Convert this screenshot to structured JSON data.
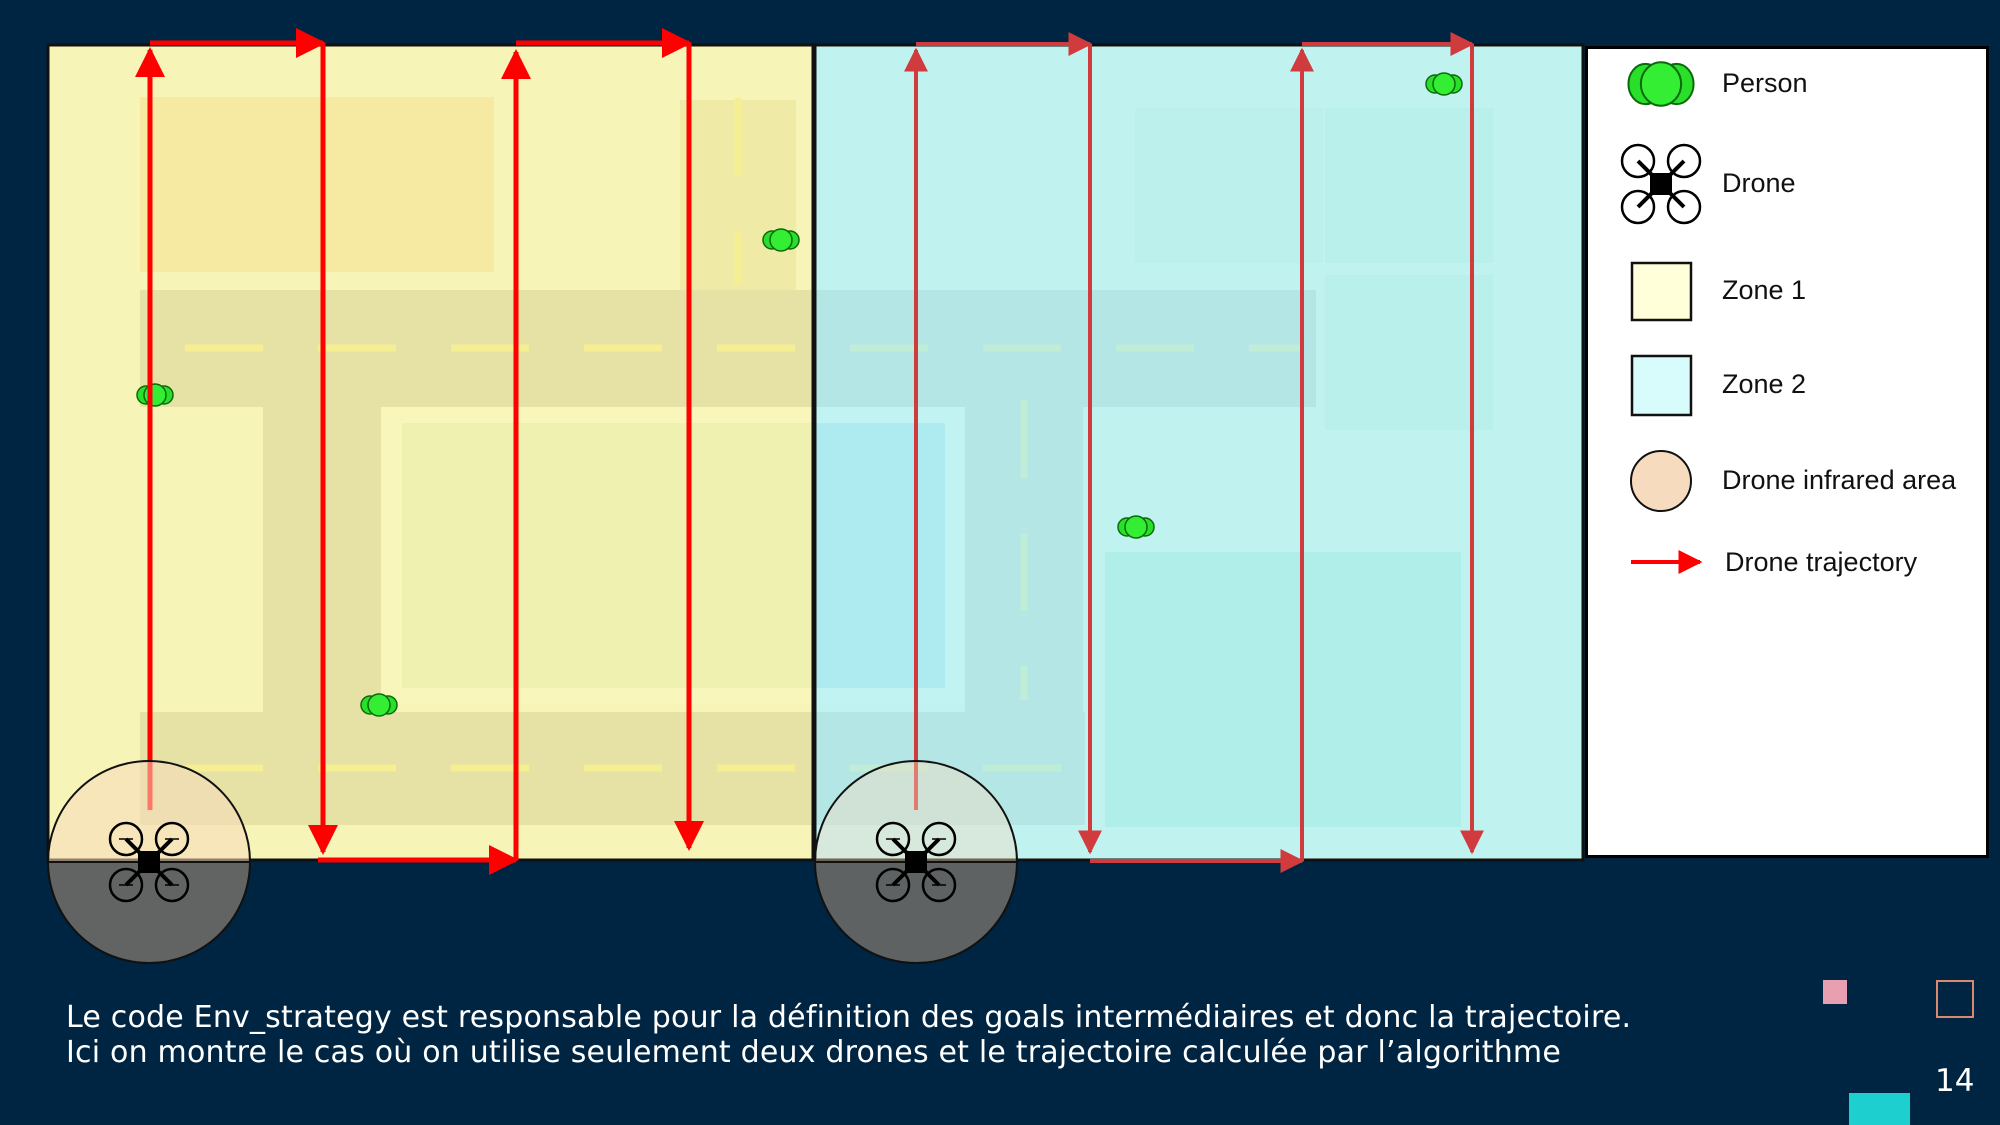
{
  "legend": {
    "items": [
      {
        "label": "Person",
        "icon": "person-icon"
      },
      {
        "label": "Drone",
        "icon": "drone-icon"
      },
      {
        "label": "Zone 1",
        "icon": "zone-1-swatch",
        "color": "#ffffd9"
      },
      {
        "label": "Zone 2",
        "icon": "zone-2-swatch",
        "color": "#d8fbfb"
      },
      {
        "label": "Drone infrared area",
        "icon": "infrared-area-swatch",
        "color": "#f7dbbe"
      },
      {
        "label": "Drone trajectory",
        "icon": "trajectory-arrow-icon",
        "color": "#ff0000"
      }
    ]
  },
  "caption": {
    "line1": "Le code Env_strategy est responsable pour la définition des goals intermédiaires et donc la trajectoire.",
    "line2": "Ici on montre le cas où on utilise seulement deux drones et le trajectoire calculée par l’algorithme"
  },
  "slide": {
    "page_number": "14"
  },
  "colors": {
    "background": "#002542",
    "zone1_overlay": "#f7f3a8",
    "zone2_overlay": "#b6f1f1",
    "trajectory_zone1": "#ff0000",
    "trajectory_zone2": "#d03b3d",
    "person": "#22dd22",
    "deco_pink": "#e8a0b0",
    "deco_cyan": "#1ecfd0"
  }
}
